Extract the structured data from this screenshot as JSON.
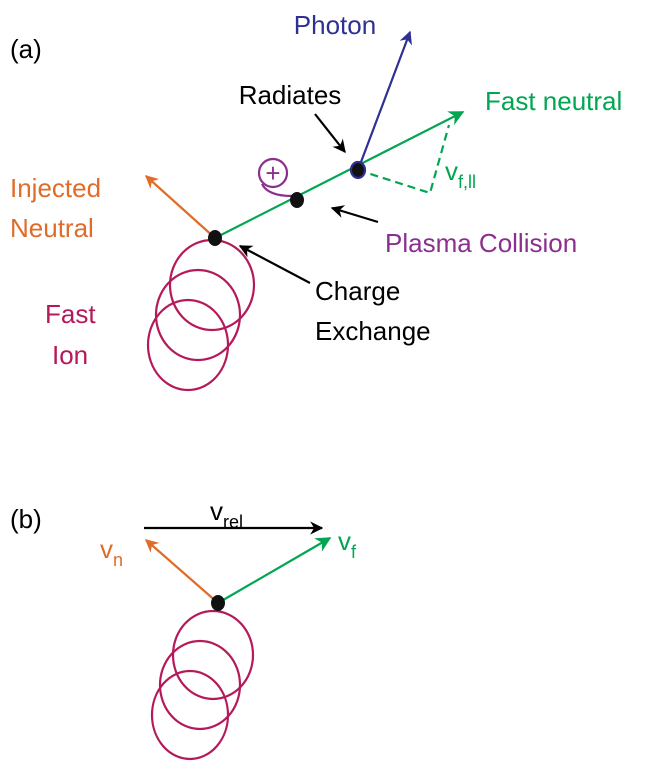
{
  "panel_a": {
    "label": "(a)",
    "photon": "Photon",
    "radiates": "Radiates",
    "fast_neutral": "Fast neutral",
    "plus": "+",
    "parallel_velocity": {
      "base": "v",
      "sub": "f,ll"
    },
    "injected_neutral": [
      "Injected",
      "Neutral"
    ],
    "plasma_collision": "Plasma Collision",
    "fast_ion": [
      "Fast",
      "Ion"
    ],
    "charge_exchange": [
      "Charge",
      "Exchange"
    ]
  },
  "panel_b": {
    "label": "(b)",
    "relative_velocity": {
      "base": "v",
      "sub": "rel"
    },
    "neutral_velocity": {
      "base": "v",
      "sub": "n"
    },
    "fast_velocity": {
      "base": "v",
      "sub": "f"
    }
  }
}
